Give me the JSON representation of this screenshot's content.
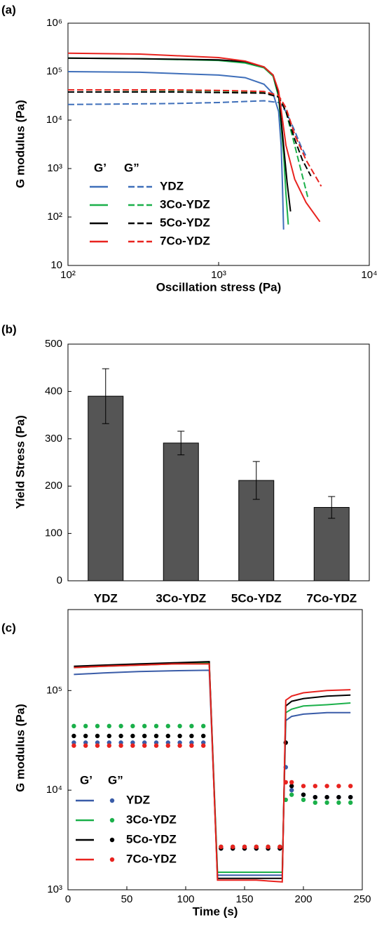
{
  "chart_data": [
    {
      "type": "line",
      "panel_label": "(a)",
      "x_label": "Oscillation stress (Pa)",
      "y_label": "G modulus (Pa)",
      "xlog": true,
      "ylog": true,
      "xlim": [
        100,
        10000
      ],
      "ylim": [
        10,
        1000000
      ],
      "xticks": [
        {
          "value": 100,
          "label": "10²"
        },
        {
          "value": 1000,
          "label": "10³"
        },
        {
          "value": 10000,
          "label": "10⁴"
        }
      ],
      "yticks": [
        10,
        {
          "value": 100,
          "label": "10²"
        },
        {
          "value": 1000,
          "label": "10³"
        },
        {
          "value": 10000,
          "label": "10⁴"
        },
        {
          "value": 100000,
          "label": "10⁵"
        },
        {
          "value": 1000000,
          "label": "10⁶"
        }
      ],
      "legend_headers": [
        "G’",
        "G”"
      ],
      "loss_style": "dashed",
      "series": [
        {
          "name": "YDZ",
          "color": "#3f6fba",
          "storage": {
            "x": [
              100,
              300,
              1000,
              1500,
              2000,
              2300,
              2500,
              2600,
              2650,
              2700
            ],
            "values": [
              100000,
              97000,
              85000,
              75000,
              55000,
              35000,
              15000,
              3000,
              500,
              55
            ]
          },
          "loss": {
            "x": [
              100,
              500,
              1000,
              2000,
              2500,
              2800,
              3200,
              3500,
              3800
            ],
            "values": [
              21000,
              22000,
              23000,
              25000,
              23000,
              15000,
              6000,
              3000,
              1800
            ]
          }
        },
        {
          "name": "3Co-YDZ",
          "color": "#1bb04a",
          "storage": {
            "x": [
              100,
              300,
              1000,
              1500,
              2000,
              2300,
              2500,
              2700,
              2800,
              2900
            ],
            "values": [
              190000,
              185000,
              170000,
              150000,
              120000,
              80000,
              30000,
              2000,
              300,
              70
            ]
          },
          "loss": {
            "x": [
              100,
              500,
              1000,
              2000,
              2500,
              2800,
              3200,
              3600,
              3900
            ],
            "values": [
              42000,
              41000,
              40000,
              38000,
              30000,
              15000,
              3000,
              700,
              260
            ]
          }
        },
        {
          "name": "5Co-YDZ",
          "color": "#000000",
          "storage": {
            "x": [
              100,
              300,
              1000,
              1500,
              2000,
              2300,
              2500,
              2700,
              2850,
              3000
            ],
            "values": [
              190000,
              185000,
              175000,
              160000,
              125000,
              85000,
              35000,
              3000,
              500,
              130
            ]
          },
          "loss": {
            "x": [
              100,
              500,
              1000,
              2000,
              2500,
              2800,
              3200,
              3600,
              4100
            ],
            "values": [
              38000,
              38000,
              37000,
              36000,
              30000,
              15000,
              4000,
              1500,
              700
            ]
          }
        },
        {
          "name": "7Co-YDZ",
          "color": "#e8231f",
          "storage": {
            "x": [
              100,
              300,
              1000,
              1500,
              2000,
              2300,
              2500,
              2800,
              3200,
              3800,
              4700
            ],
            "values": [
              240000,
              230000,
              195000,
              165000,
              125000,
              85000,
              40000,
              3000,
              600,
              200,
              80
            ]
          },
          "loss": {
            "x": [
              100,
              500,
              1000,
              2000,
              2500,
              2800,
              3200,
              3800,
              4800
            ],
            "values": [
              42000,
              42000,
              41000,
              39000,
              32000,
              18000,
              5000,
              1500,
              430
            ]
          }
        }
      ]
    },
    {
      "type": "bar",
      "panel_label": "(b)",
      "y_label": "Yield Stress (Pa)",
      "categories": [
        "YDZ",
        "3Co-YDZ",
        "5Co-YDZ",
        "7Co-YDZ"
      ],
      "values": [
        390,
        291,
        212,
        155
      ],
      "errors": [
        58,
        25,
        40,
        23
      ],
      "color": "#555555",
      "ylim": [
        0,
        500
      ],
      "yticks": [
        0,
        100,
        200,
        300,
        400,
        500
      ]
    },
    {
      "type": "line",
      "panel_label": "(c)",
      "x_label": "Time (s)",
      "y_label": "G modulus (Pa)",
      "ylog": true,
      "xlim": [
        0,
        250
      ],
      "ylim": [
        1000,
        650000
      ],
      "xticks": [
        0,
        50,
        100,
        150,
        200,
        250
      ],
      "yticks": [
        {
          "value": 1000,
          "label": "10³"
        },
        {
          "value": 10000,
          "label": "10⁴"
        },
        {
          "value": 100000,
          "label": "10⁵"
        }
      ],
      "legend_headers": [
        "G’",
        "G”"
      ],
      "loss_style": "markers",
      "series": [
        {
          "name": "YDZ",
          "color": "#3a5ca8",
          "storage": {
            "x": [
              5,
              30,
              60,
              90,
              120,
              127,
              140,
              160,
              182,
              185,
              190,
              200,
              220,
              240
            ],
            "values": [
              145000,
              150000,
              155000,
              158000,
              160000,
              1400,
              1400,
              1400,
              1400,
              50000,
              55000,
              58000,
              60000,
              60000
            ]
          },
          "loss": {
            "x": [
              5,
              15,
              25,
              35,
              45,
              55,
              65,
              75,
              85,
              95,
              105,
              115,
              130,
              140,
              150,
              160,
              170,
              180,
              185,
              190,
              200,
              210,
              220,
              230,
              240
            ],
            "values": [
              30000,
              30000,
              30000,
              30000,
              30000,
              30000,
              30000,
              30000,
              30000,
              30000,
              30000,
              30000,
              2600,
              2600,
              2600,
              2600,
              2600,
              2600,
              17000,
              10000,
              9000,
              8500,
              8500,
              8500,
              8500
            ]
          }
        },
        {
          "name": "3Co-YDZ",
          "color": "#1bb04a",
          "storage": {
            "x": [
              5,
              30,
              60,
              90,
              120,
              127,
              140,
              160,
              182,
              185,
              190,
              200,
              220,
              240
            ],
            "values": [
              170000,
              175000,
              180000,
              185000,
              190000,
              1500,
              1500,
              1500,
              1500,
              60000,
              65000,
              70000,
              72000,
              75000
            ]
          },
          "loss": {
            "x": [
              5,
              15,
              25,
              35,
              45,
              55,
              65,
              75,
              85,
              95,
              105,
              115,
              130,
              140,
              150,
              160,
              170,
              180,
              185,
              190,
              200,
              210,
              220,
              230,
              240
            ],
            "values": [
              44000,
              44000,
              44000,
              44000,
              44000,
              44000,
              44000,
              44000,
              44000,
              44000,
              44000,
              44000,
              2700,
              2700,
              2700,
              2700,
              2700,
              2700,
              8000,
              9000,
              8000,
              7500,
              7500,
              7500,
              7500
            ]
          }
        },
        {
          "name": "5Co-YDZ",
          "color": "#000000",
          "storage": {
            "x": [
              5,
              30,
              60,
              90,
              120,
              127,
              140,
              160,
              182,
              185,
              190,
              200,
              220,
              240
            ],
            "values": [
              175000,
              180000,
              185000,
              190000,
              195000,
              1300,
              1300,
              1300,
              1300,
              70000,
              78000,
              83000,
              88000,
              90000
            ]
          },
          "loss": {
            "x": [
              5,
              15,
              25,
              35,
              45,
              55,
              65,
              75,
              85,
              95,
              105,
              115,
              130,
              140,
              150,
              160,
              170,
              180,
              185,
              190,
              200,
              210,
              220,
              230,
              240
            ],
            "values": [
              35000,
              35000,
              35000,
              35000,
              35000,
              35000,
              35000,
              35000,
              35000,
              35000,
              35000,
              35000,
              2600,
              2600,
              2600,
              2600,
              2600,
              2600,
              30000,
              11000,
              9000,
              8500,
              8500,
              8500,
              8500
            ]
          }
        },
        {
          "name": "7Co-YDZ",
          "color": "#e8231f",
          "storage": {
            "x": [
              5,
              30,
              60,
              90,
              120,
              127,
              140,
              160,
              182,
              185,
              190,
              200,
              220,
              240
            ],
            "values": [
              170000,
              175000,
              180000,
              185000,
              185000,
              1250,
              1250,
              1250,
              1200,
              80000,
              88000,
              95000,
              100000,
              102000
            ]
          },
          "loss": {
            "x": [
              5,
              15,
              25,
              35,
              45,
              55,
              65,
              75,
              85,
              95,
              105,
              115,
              130,
              140,
              150,
              160,
              170,
              180,
              185,
              190,
              200,
              210,
              220,
              230,
              240
            ],
            "values": [
              28000,
              28000,
              28000,
              28000,
              28000,
              28000,
              28000,
              28000,
              28000,
              28000,
              28000,
              28000,
              2700,
              2700,
              2700,
              2700,
              2700,
              2700,
              12000,
              12000,
              11000,
              11000,
              11000,
              11000,
              11000
            ]
          }
        }
      ]
    }
  ]
}
